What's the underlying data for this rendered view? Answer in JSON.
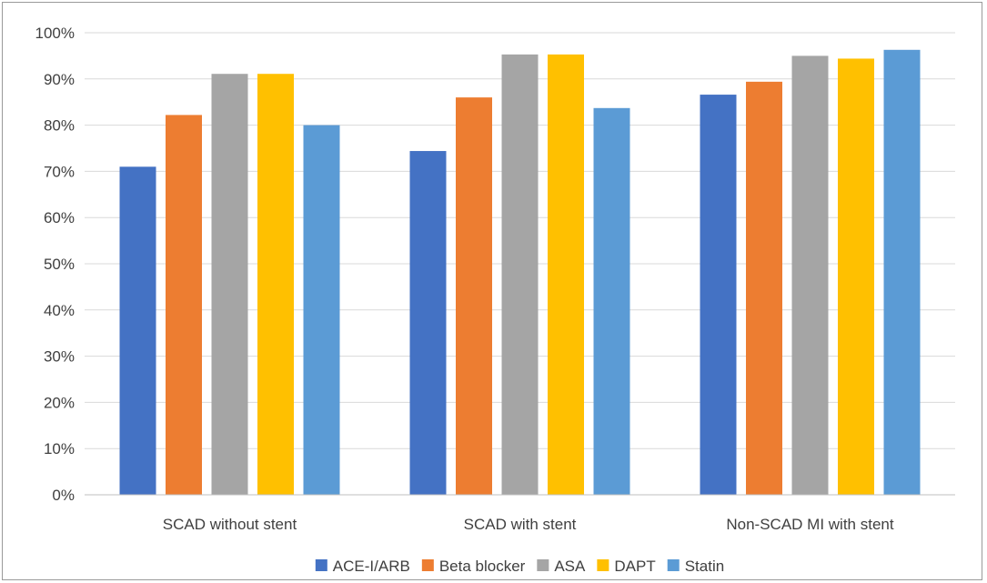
{
  "chart_data": {
    "type": "bar",
    "categories": [
      "SCAD without stent",
      "SCAD with stent",
      "Non-SCAD MI with stent"
    ],
    "series": [
      {
        "name": "ACE-I/ARB",
        "color": "#4472C4",
        "values": [
          71,
          74.4,
          86.6
        ]
      },
      {
        "name": "Beta blocker",
        "color": "#ED7D31",
        "values": [
          82.2,
          86,
          89.4
        ]
      },
      {
        "name": "ASA",
        "color": "#A5A5A5",
        "values": [
          91.1,
          95.3,
          95
        ]
      },
      {
        "name": "DAPT",
        "color": "#FFC000",
        "values": [
          91.1,
          95.3,
          94.4
        ]
      },
      {
        "name": "Statin",
        "color": "#5B9BD5",
        "values": [
          80,
          83.7,
          96.3
        ]
      }
    ],
    "ylim": [
      0,
      100
    ],
    "yticks": [
      "0%",
      "10%",
      "20%",
      "30%",
      "40%",
      "50%",
      "60%",
      "70%",
      "80%",
      "90%",
      "100%"
    ],
    "ytick_values": [
      0,
      10,
      20,
      30,
      40,
      50,
      60,
      70,
      80,
      90,
      100
    ],
    "grid": true,
    "legend_position": "bottom",
    "title": "",
    "xlabel": "",
    "ylabel": ""
  }
}
